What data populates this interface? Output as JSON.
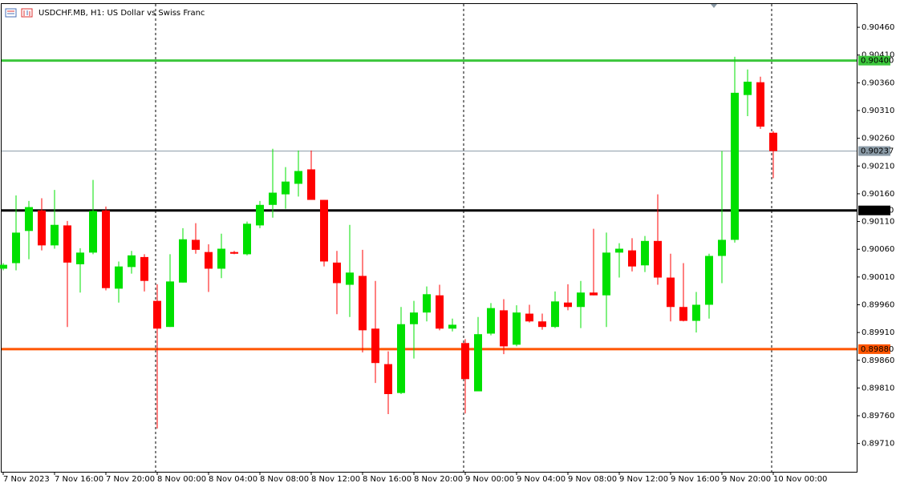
{
  "chart_data": {
    "type": "candlestick",
    "title": "USDCHF.MB, H1:  US Dollar vs Swiss Franc",
    "categories": [
      "7 Nov 2023",
      null,
      null,
      null,
      "7 Nov 16:00",
      null,
      null,
      null,
      "7 Nov 20:00",
      null,
      null,
      null,
      "8 Nov 00:00",
      null,
      null,
      null,
      "8 Nov 04:00",
      null,
      null,
      null,
      "8 Nov 08:00",
      null,
      null,
      null,
      "8 Nov 12:00",
      null,
      null,
      null,
      "8 Nov 16:00",
      null,
      null,
      null,
      "8 Nov 20:00",
      null,
      null,
      null,
      "9 Nov 00:00",
      null,
      null,
      null,
      "9 Nov 04:00",
      null,
      null,
      null,
      "9 Nov 08:00",
      null,
      null,
      null,
      "9 Nov 12:00",
      null,
      null,
      null,
      "9 Nov 16:00",
      null,
      null,
      null,
      "9 Nov 20:00",
      null,
      null,
      null,
      "10 Nov 00:00"
    ],
    "open": [
      0.90025,
      0.90035,
      0.90093,
      0.9013,
      0.90067,
      0.90103,
      0.90033,
      0.90054,
      0.9013,
      0.89989,
      0.90028,
      0.90046,
      0.89967,
      0.8992,
      0.9,
      0.90077,
      0.90055,
      0.90025,
      0.90055,
      0.90051,
      0.90103,
      0.9014,
      0.90159,
      0.90178,
      0.90204,
      0.90149,
      0.90036,
      0.89996,
      0.90012,
      0.89917,
      0.89853,
      0.89801,
      0.89925,
      0.89946,
      0.89977,
      0.89917,
      0.89891,
      0.89804,
      0.89908,
      0.8995,
      0.89888,
      0.89944,
      0.8993,
      0.8992,
      0.89964,
      0.89956,
      0.89982,
      0.89977,
      0.90054,
      0.90058,
      0.90031,
      0.90075,
      0.90009,
      0.89956,
      0.89931,
      0.8996,
      0.90048,
      0.90077,
      0.90338,
      0.90361,
      0.9027
    ],
    "high": [
      0.90035,
      0.90157,
      0.90147,
      0.90152,
      0.90167,
      0.90111,
      0.90062,
      0.90185,
      0.90137,
      0.90038,
      0.90057,
      0.90051,
      0.89997,
      0.90051,
      0.90098,
      0.90107,
      0.90069,
      0.90088,
      0.90057,
      0.9011,
      0.90147,
      0.90241,
      0.90208,
      0.90238,
      0.90238,
      0.90149,
      0.90057,
      0.90104,
      0.90059,
      0.90003,
      0.89876,
      0.89956,
      0.89967,
      0.89993,
      0.89996,
      0.89935,
      0.89898,
      0.89938,
      0.89963,
      0.8997,
      0.89959,
      0.8996,
      0.89944,
      0.89984,
      0.89997,
      0.90003,
      0.90097,
      0.9009,
      0.90071,
      0.9008,
      0.90084,
      0.90159,
      0.90052,
      0.90035,
      0.89983,
      0.90052,
      0.90237,
      0.90407,
      0.90384,
      0.90371,
      0.90273
    ],
    "low": [
      0.90022,
      0.90022,
      0.90042,
      0.90058,
      0.90061,
      0.8992,
      0.89982,
      0.90051,
      0.89986,
      0.89964,
      0.90016,
      0.89984,
      0.89737,
      0.8992,
      0.9,
      0.90052,
      0.89983,
      0.90008,
      0.90051,
      0.90049,
      0.90098,
      0.90117,
      0.90133,
      0.90155,
      0.90149,
      0.90029,
      0.89943,
      0.89938,
      0.89874,
      0.89819,
      0.89763,
      0.89799,
      0.89863,
      0.8993,
      0.89914,
      0.89912,
      0.89764,
      0.89804,
      0.89905,
      0.89871,
      0.89885,
      0.89928,
      0.89915,
      0.89918,
      0.8995,
      0.89918,
      0.89977,
      0.8992,
      0.90009,
      0.9002,
      0.90019,
      0.89996,
      0.8993,
      0.8993,
      0.8991,
      0.89935,
      0.89999,
      0.90072,
      0.903,
      0.90277,
      0.90188
    ],
    "close": [
      0.90032,
      0.9009,
      0.90136,
      0.90067,
      0.90104,
      0.90036,
      0.90054,
      0.90129,
      0.8999,
      0.90029,
      0.90049,
      0.90003,
      0.89917,
      0.90002,
      0.90078,
      0.90059,
      0.90025,
      0.90061,
      0.90052,
      0.90106,
      0.9014,
      0.90162,
      0.90182,
      0.90201,
      0.90149,
      0.90038,
      0.89999,
      0.90018,
      0.89914,
      0.89855,
      0.89799,
      0.89925,
      0.89946,
      0.89979,
      0.89917,
      0.89924,
      0.89826,
      0.89907,
      0.89954,
      0.89885,
      0.89946,
      0.8993,
      0.8992,
      0.89966,
      0.89956,
      0.89982,
      0.89977,
      0.90054,
      0.90061,
      0.90029,
      0.90075,
      0.90009,
      0.89956,
      0.89931,
      0.8996,
      0.90048,
      0.90077,
      0.90342,
      0.90362,
      0.90281,
      0.90237
    ],
    "up_color": "#00e000",
    "down_color": "#ff0000",
    "ylim": [
      0.89659,
      0.90502
    ],
    "yticks": [
      {
        "value": 0.8971,
        "label": "0.89710"
      },
      {
        "value": 0.8976,
        "label": "0.89760"
      },
      {
        "value": 0.8981,
        "label": "0.89810"
      },
      {
        "value": 0.8986,
        "label": "0.89860"
      },
      {
        "value": 0.8991,
        "label": "0.89910"
      },
      {
        "value": 0.8996,
        "label": "0.89960"
      },
      {
        "value": 0.9001,
        "label": "0.90010"
      },
      {
        "value": 0.9006,
        "label": "0.90060"
      },
      {
        "value": 0.9011,
        "label": "0.90110"
      },
      {
        "value": 0.9016,
        "label": "0.90160"
      },
      {
        "value": 0.9021,
        "label": "0.90210"
      },
      {
        "value": 0.9026,
        "label": "0.90260"
      },
      {
        "value": 0.9031,
        "label": "0.90310"
      },
      {
        "value": 0.9036,
        "label": "0.90360"
      },
      {
        "value": 0.9041,
        "label": "0.90410"
      },
      {
        "value": 0.9046,
        "label": "0.90460"
      }
    ],
    "levels": [
      {
        "value": 0.904,
        "label": "0.90400",
        "color": "#3cc63c"
      },
      {
        "value": 0.9013,
        "label": "0.90130",
        "color": "#000000"
      },
      {
        "value": 0.8988,
        "label": "0.89880",
        "color": "#ff5500"
      }
    ],
    "bid": {
      "value": 0.90237,
      "label": "0.90237",
      "color": "#8a9aa6"
    }
  }
}
